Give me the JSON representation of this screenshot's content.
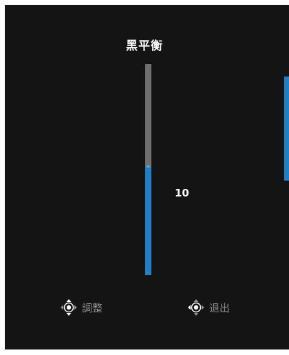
{
  "osd": {
    "title": "黑平衡",
    "value_label": "10",
    "level": 0.51,
    "accent_color": "#1f80c8",
    "track_color": "#6f6f6f",
    "background_color": "#141414"
  },
  "footer": {
    "adjust": {
      "icon": "joystick-up-down-icon",
      "label": "調整"
    },
    "exit": {
      "icon": "joystick-left-icon",
      "label": "退出"
    }
  }
}
